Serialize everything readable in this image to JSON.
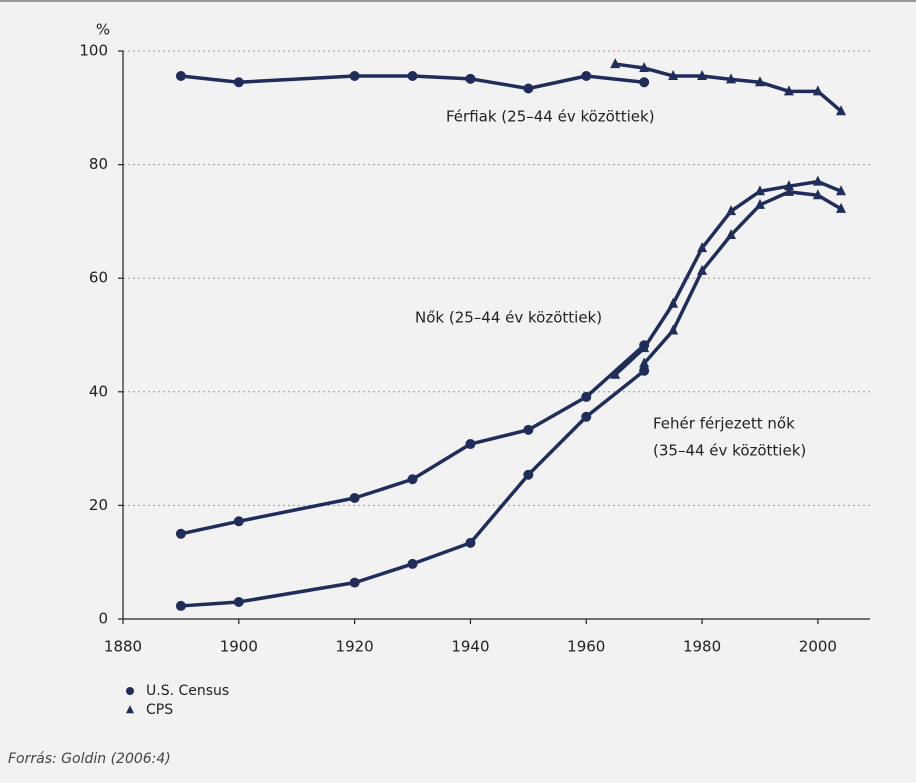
{
  "chart_data": {
    "type": "line",
    "y_label": "%",
    "xlim": [
      1880,
      2009
    ],
    "ylim": [
      0,
      100
    ],
    "xticks": [
      1880,
      1900,
      1920,
      1940,
      1960,
      1980,
      2000
    ],
    "yticks": [
      0,
      20,
      40,
      60,
      80,
      100
    ],
    "grid": true,
    "color": "#1f2d5a",
    "series": [
      {
        "marker": "circle",
        "x": [
          1890,
          1900,
          1920,
          1930,
          1940,
          1950,
          1960,
          1970
        ],
        "values": [
          95.6,
          94.5,
          95.6,
          95.6,
          95.1,
          93.4,
          95.6,
          94.5
        ]
      },
      {
        "marker": "triangle",
        "x": [
          1965,
          1970,
          1975,
          1980,
          1985,
          1990,
          1995,
          2000,
          2004
        ],
        "values": [
          97.7,
          97.0,
          95.6,
          95.6,
          95.0,
          94.5,
          92.9,
          92.9,
          89.4
        ]
      },
      {
        "marker": "circle",
        "x": [
          1890,
          1900,
          1920,
          1930,
          1940,
          1950,
          1960,
          1970
        ],
        "values": [
          15.0,
          17.2,
          21.3,
          24.6,
          30.8,
          33.3,
          39.1,
          48.2
        ]
      },
      {
        "marker": "triangle",
        "x": [
          1965,
          1970,
          1975,
          1980,
          1985,
          1990,
          1995,
          2000,
          2004
        ],
        "values": [
          43.0,
          47.7,
          55.5,
          65.3,
          71.8,
          75.3,
          76.2,
          77.0,
          75.3
        ]
      },
      {
        "marker": "circle",
        "x": [
          1890,
          1900,
          1920,
          1930,
          1940,
          1950,
          1960,
          1970
        ],
        "values": [
          2.3,
          3.0,
          6.4,
          9.7,
          13.4,
          25.4,
          35.6,
          43.7
        ]
      },
      {
        "marker": "triangle",
        "x": [
          1970,
          1975,
          1980,
          1985,
          1990,
          1995,
          2000,
          2004
        ],
        "values": [
          45.0,
          50.8,
          61.3,
          67.6,
          72.9,
          75.2,
          74.6,
          72.2
        ]
      }
    ],
    "annotations": [
      "Férfiak (25–44 év közöttiek)",
      "Nők (25–44 év közöttiek)",
      "Fehér férjezett nők",
      "(35–44 év közöttiek)"
    ],
    "legend": [
      {
        "label": "U.S. Census",
        "marker": "circle"
      },
      {
        "label": "CPS",
        "marker": "triangle"
      }
    ],
    "source": "Forrás: Goldin (2006:4)"
  }
}
